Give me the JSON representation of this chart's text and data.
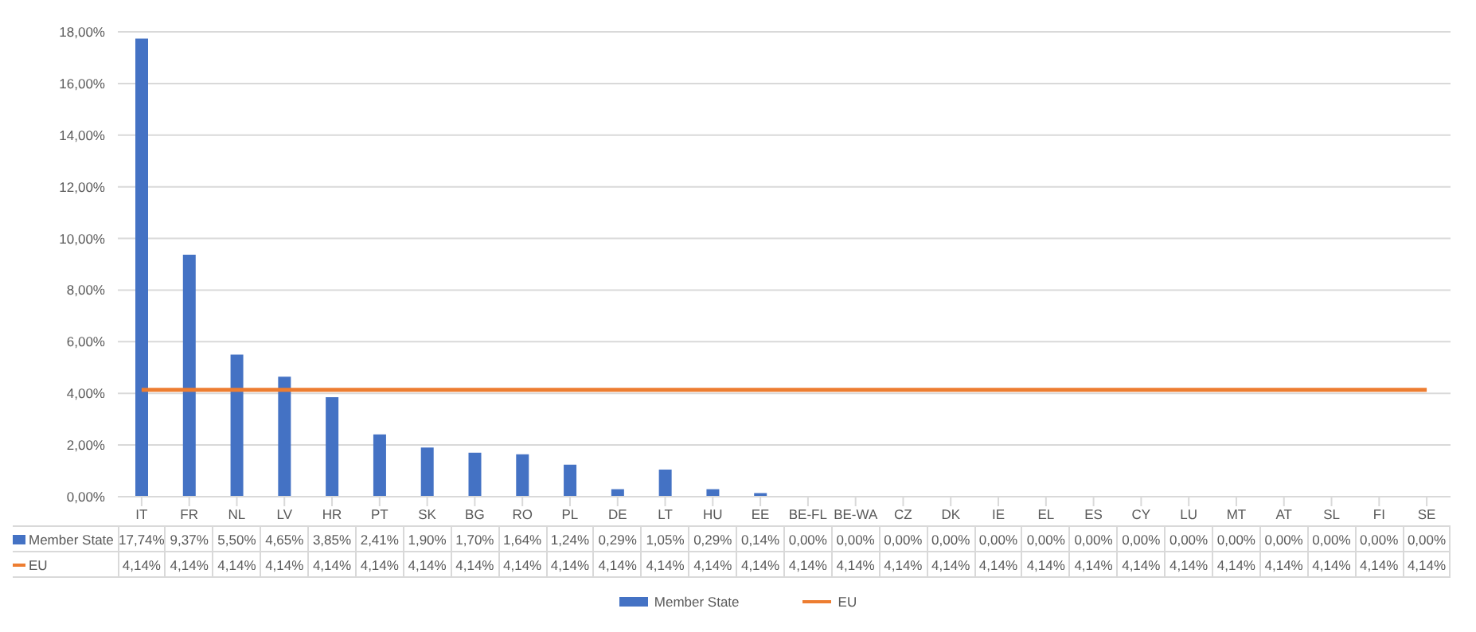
{
  "chart_data": {
    "type": "bar",
    "categories": [
      "IT",
      "FR",
      "NL",
      "LV",
      "HR",
      "PT",
      "SK",
      "BG",
      "RO",
      "PL",
      "DE",
      "LT",
      "HU",
      "EE",
      "BE-FL",
      "BE-WA",
      "CZ",
      "DK",
      "IE",
      "EL",
      "ES",
      "CY",
      "LU",
      "MT",
      "AT",
      "SL",
      "FI",
      "SE"
    ],
    "series": [
      {
        "name": "Member State",
        "color": "#4472c4",
        "values": [
          17.74,
          9.37,
          5.5,
          4.65,
          3.85,
          2.41,
          1.9,
          1.7,
          1.64,
          1.24,
          0.29,
          1.05,
          0.29,
          0.14,
          0,
          0,
          0,
          0,
          0,
          0,
          0,
          0,
          0,
          0,
          0,
          0,
          0,
          0
        ],
        "value_labels": [
          "17,74%",
          "9,37%",
          "5,50%",
          "4,65%",
          "3,85%",
          "2,41%",
          "1,90%",
          "1,70%",
          "1,64%",
          "1,24%",
          "0,29%",
          "1,05%",
          "0,29%",
          "0,14%",
          "0,00%",
          "0,00%",
          "0,00%",
          "0,00%",
          "0,00%",
          "0,00%",
          "0,00%",
          "0,00%",
          "0,00%",
          "0,00%",
          "0,00%",
          "0,00%",
          "0,00%",
          "0,00%"
        ]
      },
      {
        "name": "EU",
        "type": "line",
        "color": "#ed7d31",
        "values": [
          4.14,
          4.14,
          4.14,
          4.14,
          4.14,
          4.14,
          4.14,
          4.14,
          4.14,
          4.14,
          4.14,
          4.14,
          4.14,
          4.14,
          4.14,
          4.14,
          4.14,
          4.14,
          4.14,
          4.14,
          4.14,
          4.14,
          4.14,
          4.14,
          4.14,
          4.14,
          4.14,
          4.14
        ],
        "value_labels": [
          "4,14%",
          "4,14%",
          "4,14%",
          "4,14%",
          "4,14%",
          "4,14%",
          "4,14%",
          "4,14%",
          "4,14%",
          "4,14%",
          "4,14%",
          "4,14%",
          "4,14%",
          "4,14%",
          "4,14%",
          "4,14%",
          "4,14%",
          "4,14%",
          "4,14%",
          "4,14%",
          "4,14%",
          "4,14%",
          "4,14%",
          "4,14%",
          "4,14%",
          "4,14%",
          "4,14%",
          "4,14%"
        ]
      }
    ],
    "ylim": [
      0,
      18
    ],
    "yticks": [
      {
        "value": 0,
        "label": "0,00%"
      },
      {
        "value": 2,
        "label": "2,00%"
      },
      {
        "value": 4,
        "label": "4,00%"
      },
      {
        "value": 6,
        "label": "6,00%"
      },
      {
        "value": 8,
        "label": "8,00%"
      },
      {
        "value": 10,
        "label": "10,00%"
      },
      {
        "value": 12,
        "label": "12,00%"
      },
      {
        "value": 14,
        "label": "14,00%"
      },
      {
        "value": 16,
        "label": "16,00%"
      },
      {
        "value": 18,
        "label": "18,00%"
      }
    ],
    "grid": "y",
    "legend": "bottom",
    "marker": "none"
  }
}
